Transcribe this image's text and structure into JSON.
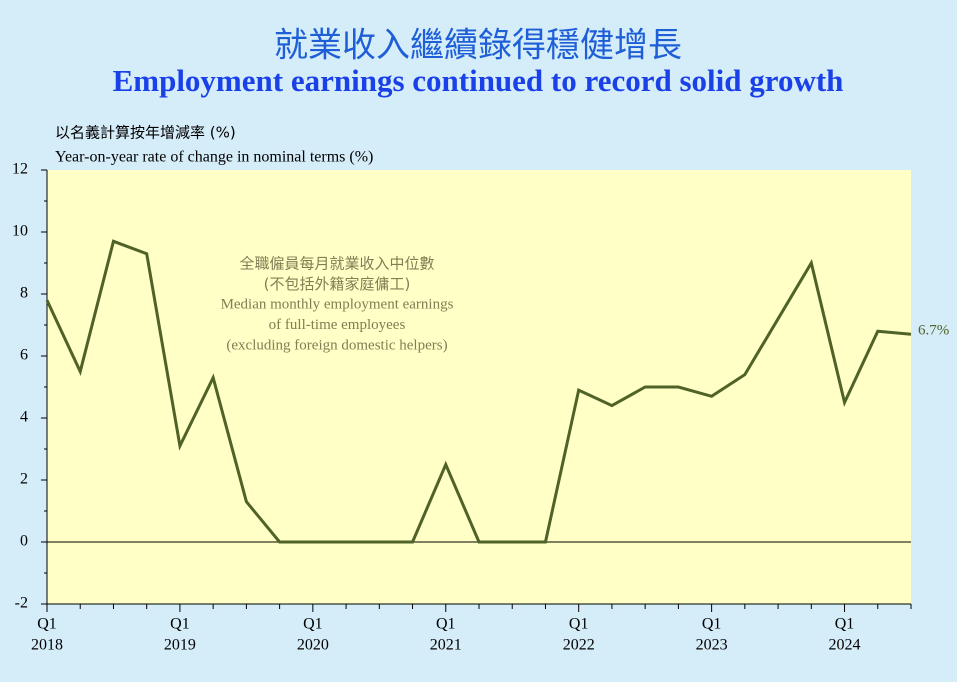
{
  "chart_data": {
    "type": "line",
    "title": "就業收入繼續錄得穩健增長",
    "subtitle": "Employment earnings continued to record solid growth",
    "y_axis_label": "以名義計算按年增減率 (%)",
    "y_axis_label_en": "Year-on-year rate of change in nominal terms (%)",
    "annotation": [
      "全職僱員每月就業收入中位數",
      "(不包括外籍家庭傭工)",
      "Median monthly employment earnings",
      "of full-time employees",
      "(excluding foreign domestic helpers)"
    ],
    "categories": [
      "Q1",
      null,
      null,
      null,
      "Q1",
      null,
      null,
      null,
      "Q1",
      null,
      null,
      null,
      "Q1",
      null,
      null,
      null,
      "Q1",
      null,
      null,
      null,
      "Q1",
      null,
      null,
      null,
      "Q1",
      null,
      null
    ],
    "years": [
      "2018",
      null,
      null,
      null,
      "2019",
      null,
      null,
      null,
      "2020",
      null,
      null,
      null,
      "2021",
      null,
      null,
      null,
      "2022",
      null,
      null,
      null,
      "2023",
      null,
      null,
      null,
      "2024",
      null,
      null
    ],
    "series": [
      {
        "color": "#4f6228",
        "values": [
          7.8,
          5.5,
          9.7,
          9.3,
          3.1,
          5.3,
          1.3,
          0,
          0,
          0,
          0,
          0,
          2.5,
          0,
          0,
          0,
          4.9,
          4.4,
          5.0,
          5.0,
          4.7,
          5.4,
          7.2,
          9.0,
          4.5,
          6.8,
          6.7
        ],
        "value_labels": [
          null,
          null,
          null,
          null,
          null,
          null,
          null,
          null,
          null,
          null,
          null,
          null,
          null,
          null,
          null,
          null,
          null,
          null,
          null,
          null,
          null,
          null,
          null,
          null,
          null,
          null,
          "6.7%"
        ]
      }
    ],
    "ylim": [
      -2,
      12
    ],
    "yticks": [
      -2,
      0,
      2,
      4,
      6,
      8,
      10,
      12
    ],
    "y_minor_ticks": [
      -1,
      1,
      3,
      5,
      7,
      9,
      11
    ]
  }
}
